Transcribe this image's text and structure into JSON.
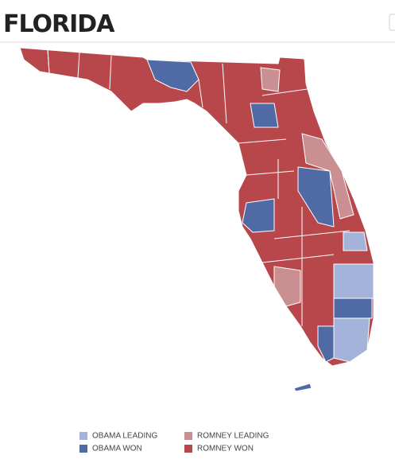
{
  "header": {
    "title": "FLORIDA"
  },
  "legend": [
    {
      "label": "OBAMA LEADING",
      "color": "#a3b3d9"
    },
    {
      "label": "ROMNEY LEADING",
      "color": "#c98f91"
    },
    {
      "label": "OBAMA WON",
      "color": "#4f6aa5"
    },
    {
      "label": "ROMNEY WON",
      "color": "#b8474c"
    }
  ]
}
